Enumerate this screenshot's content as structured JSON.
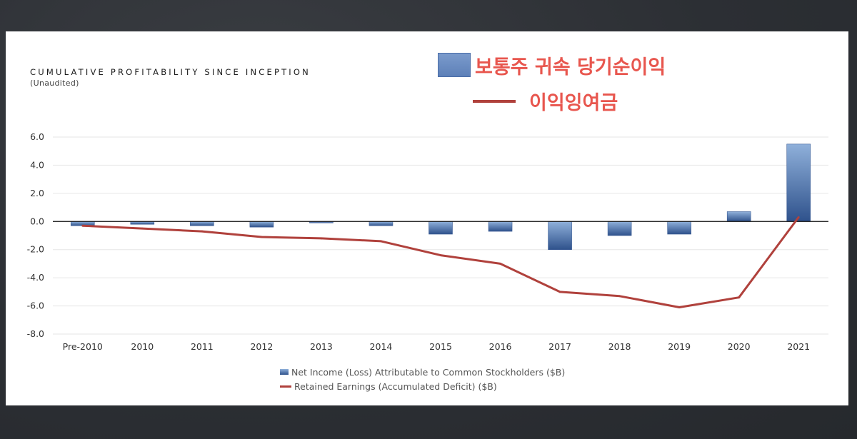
{
  "header": {
    "title": "CUMULATIVE PROFITABILITY SINCE INCEPTION",
    "subtitle": "(Unaudited)"
  },
  "annotation_legend": {
    "bar_label": "보통주 귀속 당기순이익",
    "line_label": "이익잉여금"
  },
  "colors": {
    "bar_top": "#8fb0da",
    "bar_bottom": "#2f528c",
    "line": "#b0413c",
    "annotation_text": "#e8564e",
    "slide_background": "#ffffff",
    "desk_background": "#2e3136"
  },
  "chart_data": {
    "type": "bar",
    "categories": [
      "Pre-2010",
      "2010",
      "2011",
      "2012",
      "2013",
      "2014",
      "2015",
      "2016",
      "2017",
      "2018",
      "2019",
      "2020",
      "2021"
    ],
    "series": [
      {
        "name": "Net Income (Loss) Attributable to Common Stockholders ($B)",
        "type": "bar",
        "values": [
          -0.3,
          -0.2,
          -0.3,
          -0.4,
          -0.1,
          -0.3,
          -0.9,
          -0.7,
          -2.0,
          -1.0,
          -0.9,
          0.7,
          5.5
        ]
      },
      {
        "name": "Retained Earnings (Accumulated Deficit) ($B)",
        "type": "line",
        "values": [
          -0.3,
          -0.5,
          -0.7,
          -1.1,
          -1.2,
          -1.4,
          -2.4,
          -3.0,
          -5.0,
          -5.3,
          -6.1,
          -5.4,
          0.3
        ]
      }
    ],
    "yticks": [
      "6.0",
      "4.0",
      "2.0",
      "0.0",
      "-2.0",
      "-4.0",
      "-6.0",
      "-8.0"
    ],
    "ylim": [
      -8,
      6
    ],
    "grid": true,
    "legend_position": "bottom"
  }
}
